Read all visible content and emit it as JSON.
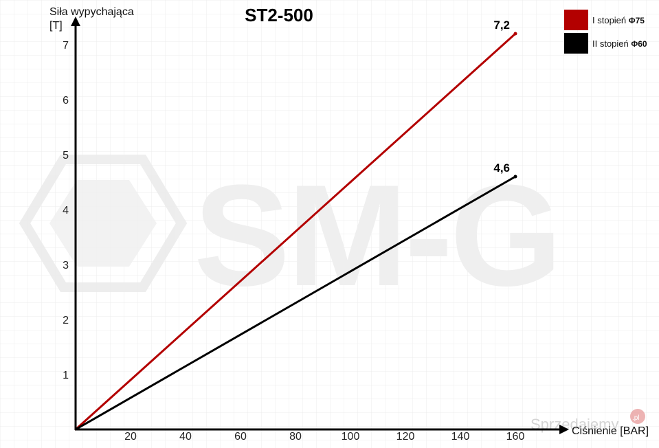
{
  "chart_data": {
    "type": "line",
    "title": "ST2-500",
    "ylabel_line1": "Siła wypychająca",
    "ylabel_line2": "[T]",
    "xlabel": "Ciśnienie [BAR]",
    "xlim": [
      0,
      160
    ],
    "ylim": [
      0,
      7.5
    ],
    "x_ticks": [
      20,
      40,
      60,
      80,
      100,
      120,
      140,
      160
    ],
    "y_ticks": [
      1,
      2,
      3,
      4,
      5,
      6,
      7
    ],
    "grid": true,
    "legend_position": "top-right",
    "series": [
      {
        "name": "I stopień ",
        "name_symbol": "Φ75",
        "color": "#b30000",
        "x": [
          0,
          160
        ],
        "y": [
          0,
          7.2
        ],
        "end_label": "7,2"
      },
      {
        "name": "II stopień ",
        "name_symbol": "Φ60",
        "color": "#000000",
        "x": [
          0,
          160
        ],
        "y": [
          0,
          4.6
        ],
        "end_label": "4,6"
      }
    ]
  },
  "watermark": {
    "text": "SM-G",
    "site": "Sprzedajemy",
    "site_tld": ".pl"
  }
}
